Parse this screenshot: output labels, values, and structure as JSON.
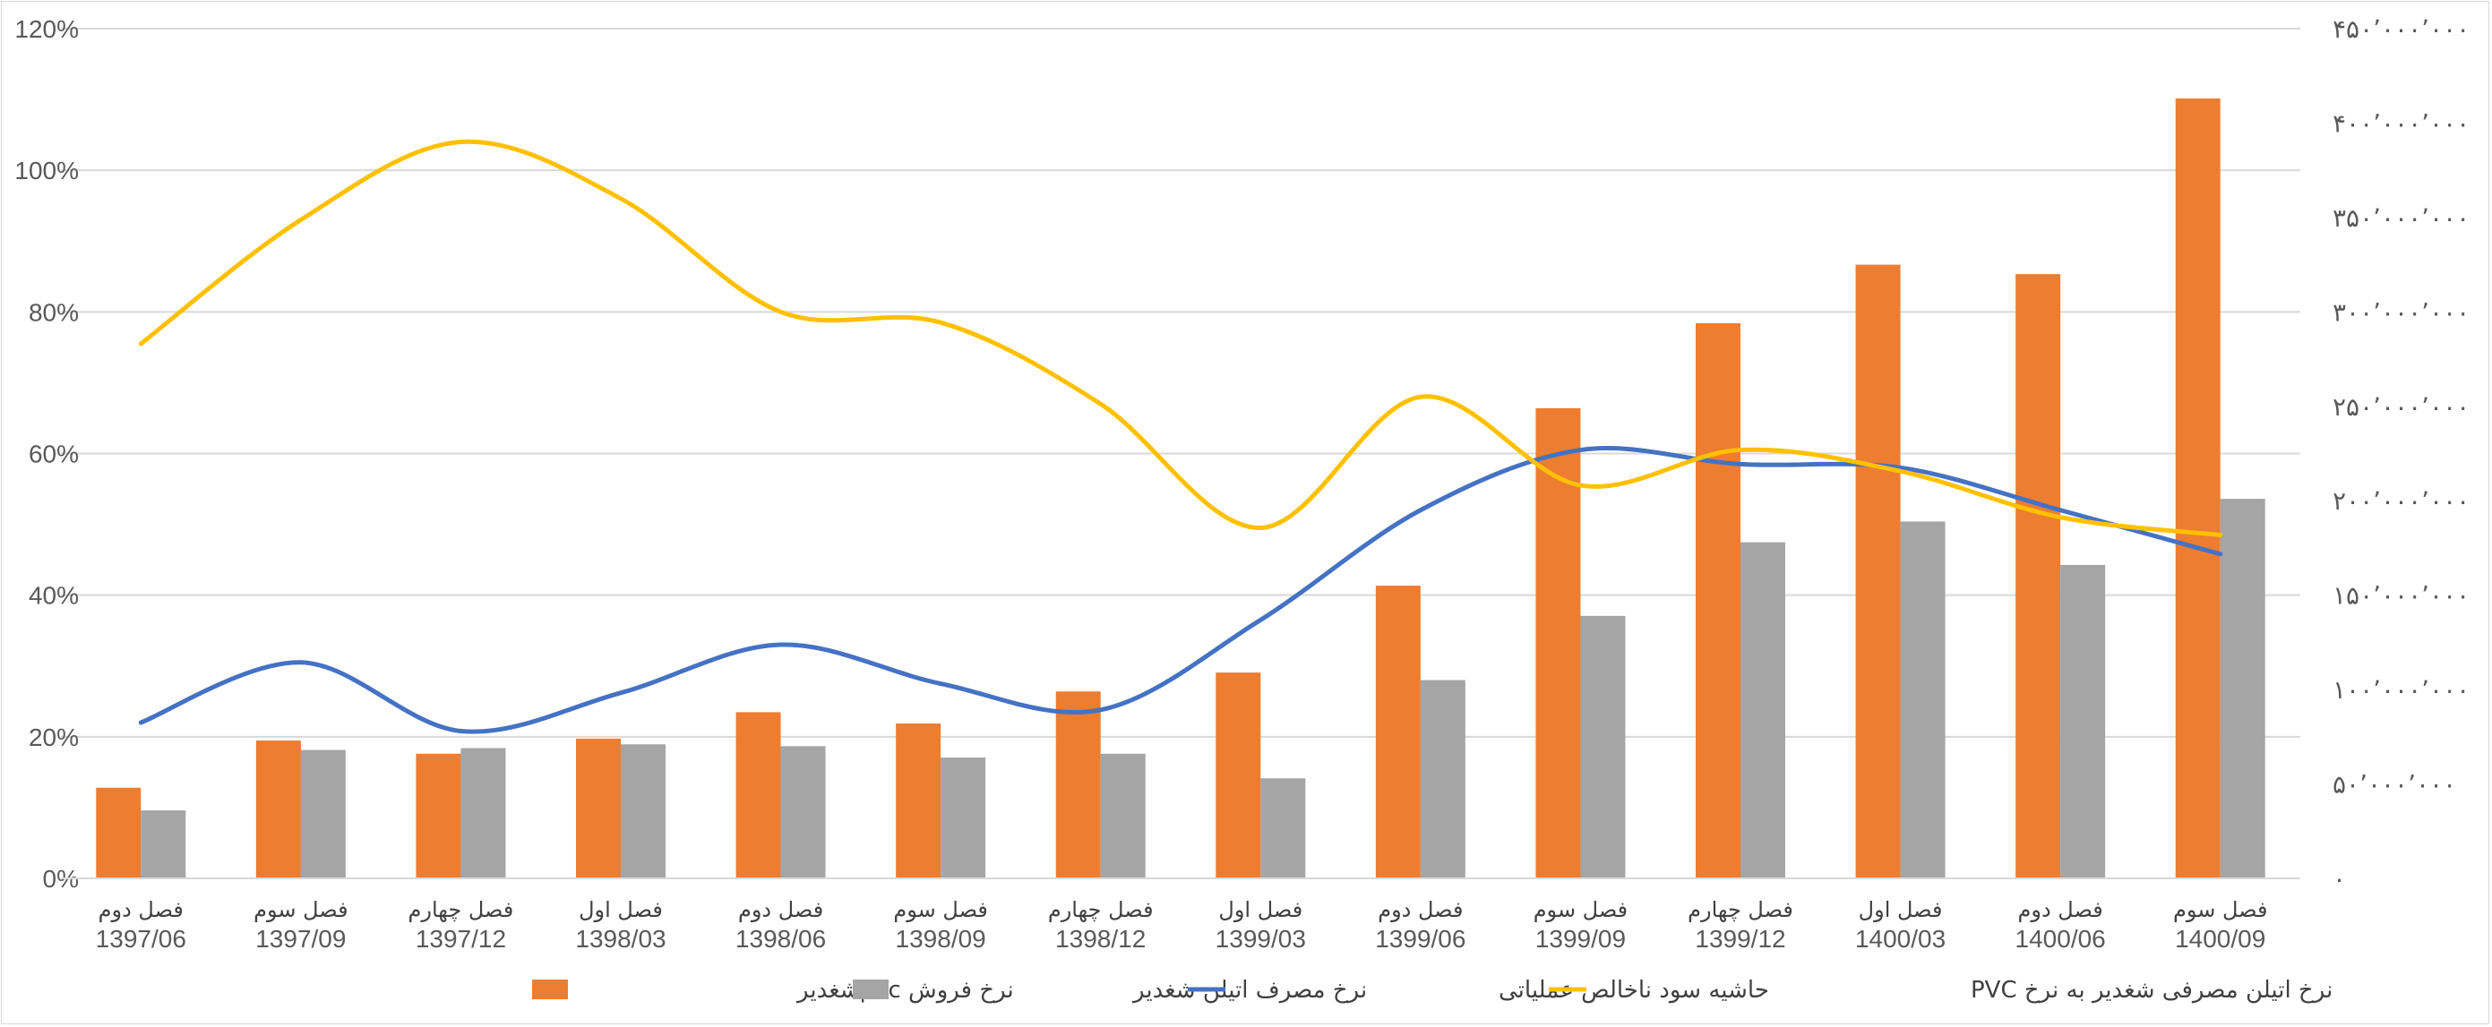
{
  "chart_data": {
    "type": "bar",
    "categories": [
      {
        "season": "فصل دوم",
        "period": "1397/06"
      },
      {
        "season": "فصل سوم",
        "period": "1397/09"
      },
      {
        "season": "فصل چهارم",
        "period": "1397/12"
      },
      {
        "season": "فصل اول",
        "period": "1398/03"
      },
      {
        "season": "فصل دوم",
        "period": "1398/06"
      },
      {
        "season": "فصل سوم",
        "period": "1398/09"
      },
      {
        "season": "فصل چهارم",
        "period": "1398/12"
      },
      {
        "season": "فصل اول",
        "period": "1399/03"
      },
      {
        "season": "فصل دوم",
        "period": "1399/06"
      },
      {
        "season": "فصل سوم",
        "period": "1399/09"
      },
      {
        "season": "فصل چهارم",
        "period": "1399/12"
      },
      {
        "season": "فصل اول",
        "period": "1400/03"
      },
      {
        "season": "فصل دوم",
        "period": "1400/06"
      },
      {
        "season": "فصل سوم",
        "period": "1400/09"
      }
    ],
    "series": [
      {
        "name": "نرخ فروش  pvcشغدیر",
        "type": "bar",
        "axis": "right",
        "color": "#ED7D31",
        "values": [
          48000000,
          73000000,
          66000000,
          74000000,
          88000000,
          82000000,
          99000000,
          109000000,
          155000000,
          249000000,
          294000000,
          325000000,
          320000000,
          413000000
        ]
      },
      {
        "name": "نرخ مصرف اتیلن شغدیر",
        "type": "bar",
        "axis": "right",
        "color": "#A5A5A5",
        "values": [
          36000000,
          68000000,
          69000000,
          71000000,
          70000000,
          64000000,
          66000000,
          53000000,
          105000000,
          139000000,
          178000000,
          189000000,
          166000000,
          201000000
        ]
      },
      {
        "name": "حاشیه سود ناخالص عملیاتی",
        "type": "line",
        "axis": "left",
        "color": "#4472C4",
        "values": [
          0.22,
          0.305,
          0.208,
          0.262,
          0.33,
          0.275,
          0.238,
          0.365,
          0.52,
          0.605,
          0.585,
          0.58,
          0.52,
          0.458
        ]
      },
      {
        "name": "نرخ اتیلن مصرفی شغدیر به نرخ PVC",
        "type": "line",
        "axis": "left",
        "color": "#FFC000",
        "values": [
          0.755,
          0.93,
          1.04,
          0.96,
          0.8,
          0.785,
          0.67,
          0.495,
          0.68,
          0.555,
          0.605,
          0.575,
          0.51,
          0.485
        ]
      }
    ],
    "left_axis": {
      "min": 0,
      "max": 1.2,
      "step": 0.2,
      "labels": [
        "0%",
        "20%",
        "40%",
        "60%",
        "80%",
        "100%",
        "120%"
      ]
    },
    "right_axis": {
      "min": 0,
      "max": 450000000,
      "step": 50000000,
      "labels": [
        "۰",
        "۵۰٬۰۰۰٬۰۰۰",
        "۱۰۰٬۰۰۰٬۰۰۰",
        "۱۵۰٬۰۰۰٬۰۰۰",
        "۲۰۰٬۰۰۰٬۰۰۰",
        "۲۵۰٬۰۰۰٬۰۰۰",
        "۳۰۰٬۰۰۰٬۰۰۰",
        "۳۵۰٬۰۰۰٬۰۰۰",
        "۴۰۰٬۰۰۰٬۰۰۰",
        "۴۵۰٬۰۰۰٬۰۰۰"
      ]
    },
    "gridlines": true,
    "legend_position": "bottom"
  }
}
